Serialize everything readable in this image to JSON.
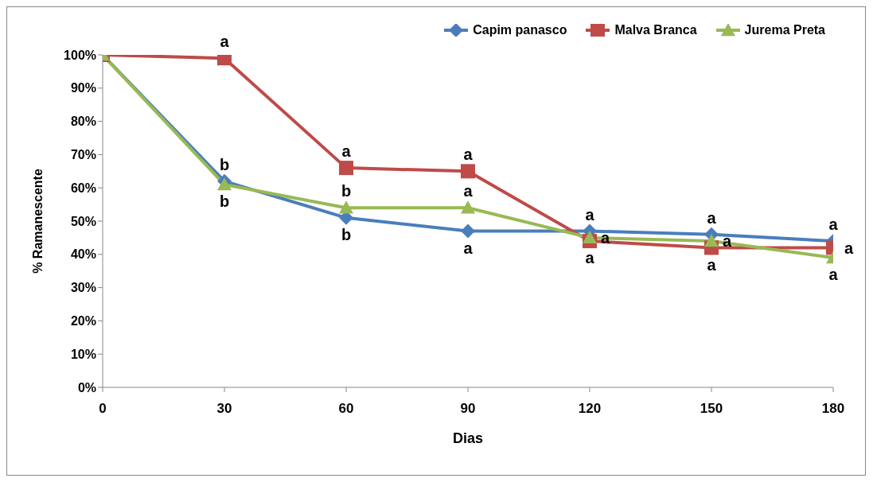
{
  "chart_data": {
    "type": "line",
    "xlabel": "Dias",
    "ylabel": "% Ramanescente",
    "x": [
      0,
      30,
      60,
      90,
      120,
      150,
      180
    ],
    "series": [
      {
        "name": "Capim panasco",
        "color": "#4a7ebb",
        "marker": "diamond",
        "values": [
          100,
          62,
          51,
          47,
          47,
          46,
          44
        ]
      },
      {
        "name": "Malva Branca",
        "color": "#be4b48",
        "marker": "square",
        "values": [
          100,
          99,
          66,
          65,
          44,
          42,
          42
        ]
      },
      {
        "name": "Jurema Preta",
        "color": "#98b954",
        "marker": "triangle",
        "values": [
          100,
          61,
          54,
          54,
          45,
          44,
          39
        ]
      }
    ],
    "xlim": [
      0,
      180
    ],
    "xticks": [
      0,
      30,
      60,
      90,
      120,
      150,
      180
    ],
    "ylim": [
      0,
      100
    ],
    "yticks": [
      {
        "value": 0,
        "label": "0%"
      },
      {
        "value": 10,
        "label": "10%"
      },
      {
        "value": 20,
        "label": "20%"
      },
      {
        "value": 30,
        "label": "30%"
      },
      {
        "value": 40,
        "label": "40%"
      },
      {
        "value": 50,
        "label": "50%"
      },
      {
        "value": 60,
        "label": "60%"
      },
      {
        "value": 70,
        "label": "70%"
      },
      {
        "value": 80,
        "label": "80%"
      },
      {
        "value": 90,
        "label": "90%"
      },
      {
        "value": 100,
        "label": "100%"
      }
    ],
    "grid": false,
    "legend": "top right",
    "line_style": "solid",
    "annotations": [
      {
        "text": "a",
        "x": 30,
        "y": 99
      },
      {
        "text": "b",
        "x": 30,
        "y": 62
      },
      {
        "text": "b",
        "x": 30,
        "y": 61
      },
      {
        "text": "a",
        "x": 60,
        "y": 66
      },
      {
        "text": "b",
        "x": 60,
        "y": 54
      },
      {
        "text": "b",
        "x": 60,
        "y": 51
      },
      {
        "text": "a",
        "x": 90,
        "y": 65
      },
      {
        "text": "a",
        "x": 90,
        "y": 54
      },
      {
        "text": "a",
        "x": 90,
        "y": 47
      },
      {
        "text": "a",
        "x": 120,
        "y": 47
      },
      {
        "text": "a",
        "x": 120,
        "y": 45
      },
      {
        "text": "a",
        "x": 120,
        "y": 44
      },
      {
        "text": "a",
        "x": 150,
        "y": 46
      },
      {
        "text": "a",
        "x": 150,
        "y": 44
      },
      {
        "text": "a",
        "x": 150,
        "y": 42
      },
      {
        "text": "a",
        "x": 180,
        "y": 44
      },
      {
        "text": "a",
        "x": 180,
        "y": 42
      },
      {
        "text": "a",
        "x": 180,
        "y": 39
      }
    ]
  }
}
